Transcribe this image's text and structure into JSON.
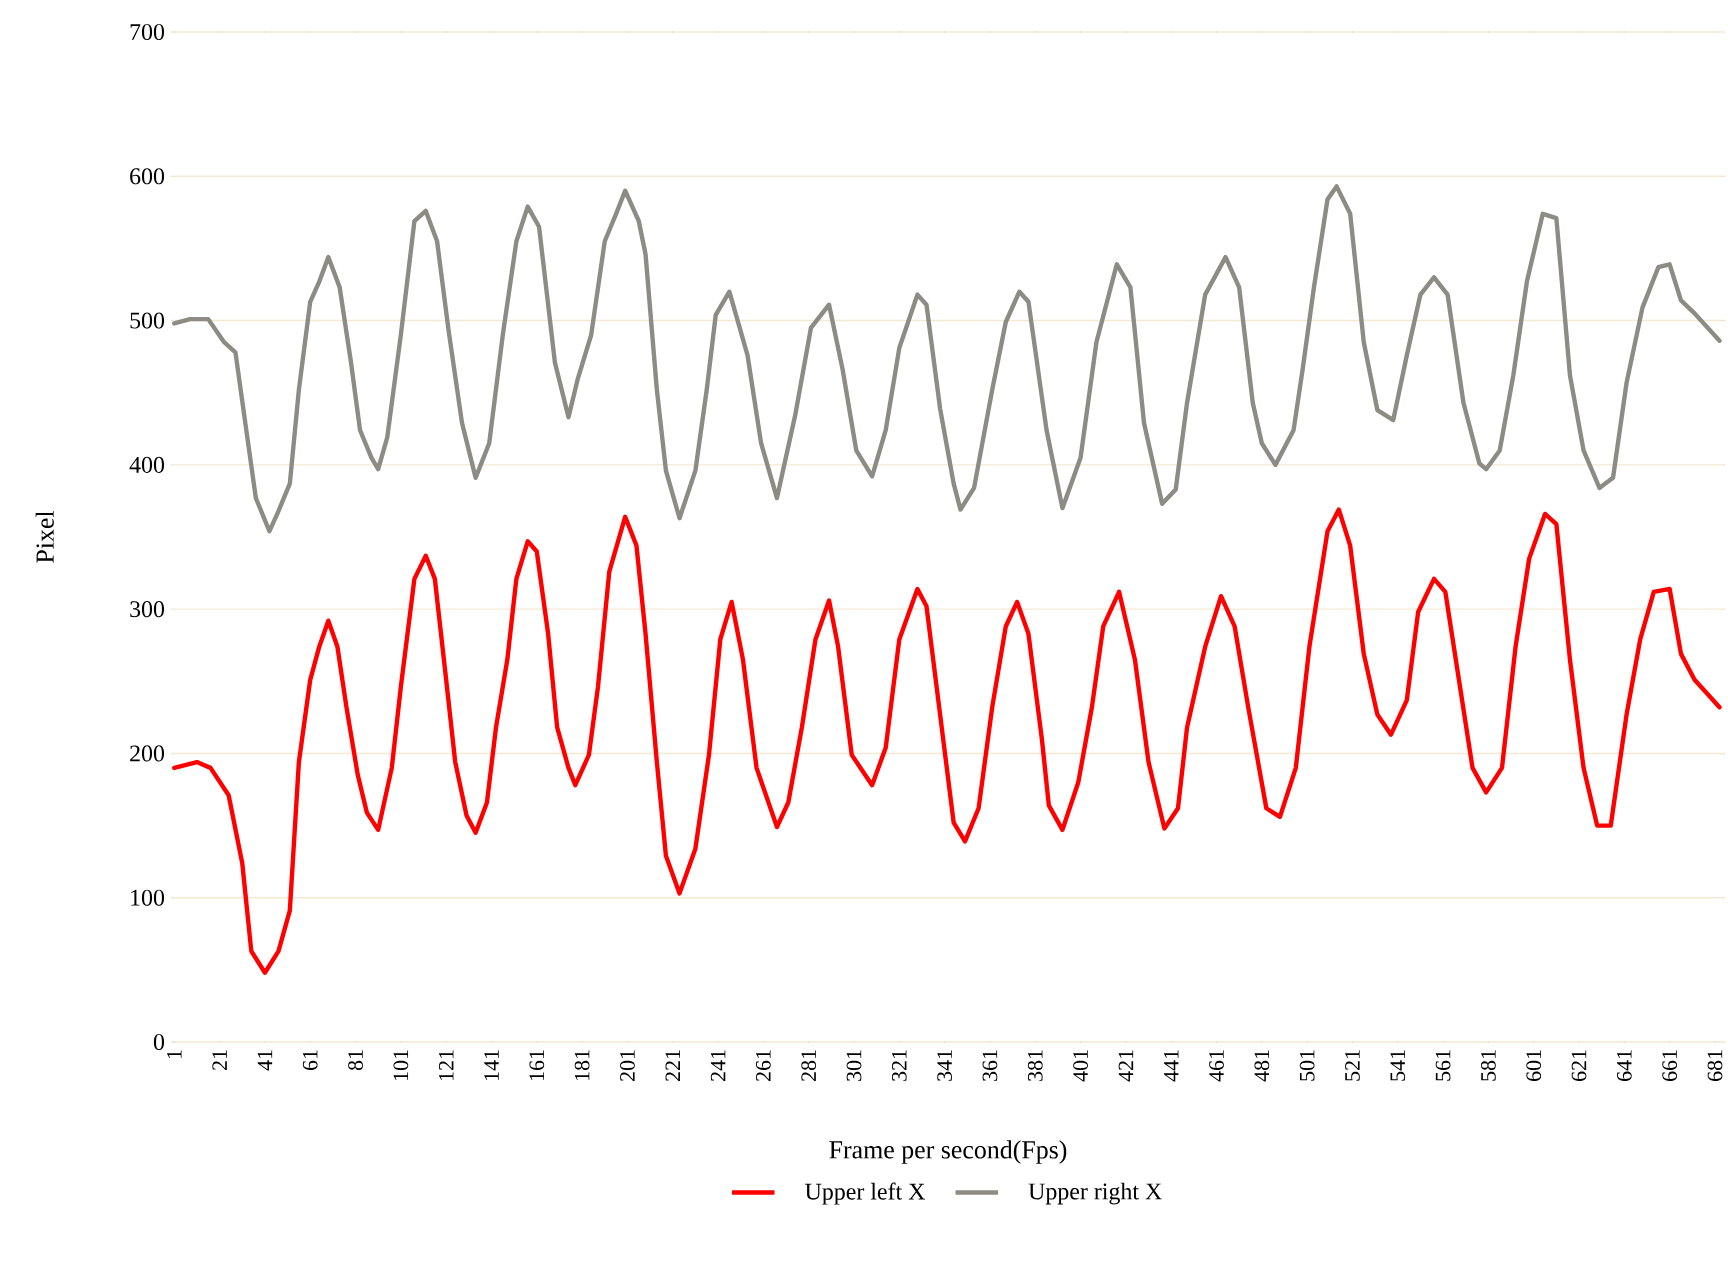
{
  "chart_data": {
    "type": "line",
    "xlabel": "Frame per second(Fps)",
    "ylabel": "Pixel",
    "xlim": [
      0,
      685
    ],
    "ylim": [
      0,
      700
    ],
    "xticks": [
      1,
      21,
      41,
      61,
      81,
      101,
      121,
      141,
      161,
      181,
      201,
      221,
      241,
      261,
      281,
      301,
      321,
      341,
      361,
      381,
      401,
      421,
      441,
      461,
      481,
      501,
      521,
      541,
      561,
      581,
      601,
      621,
      641,
      661,
      681
    ],
    "yticks": [
      0,
      100,
      200,
      300,
      400,
      500,
      600,
      700
    ],
    "grid": "y",
    "legend": "bottom",
    "marker": "none",
    "line_style": "solid",
    "series": [
      {
        "name": "Upper left X",
        "color": "#ff0000",
        "x": [
          1,
          11,
          17,
          25,
          31,
          35,
          41,
          47,
          52,
          56,
          61,
          65,
          69,
          73,
          77,
          82,
          86,
          91,
          97,
          101,
          107,
          112,
          116,
          121,
          125,
          130,
          134,
          139,
          143,
          148,
          152,
          157,
          161,
          166,
          170,
          175,
          178,
          184,
          188,
          193,
          200,
          205,
          209,
          214,
          218,
          224,
          231,
          237,
          242,
          247,
          252,
          258,
          267,
          272,
          278,
          284,
          290,
          294,
          300,
          309,
          315,
          321,
          329,
          333,
          339,
          345,
          350,
          356,
          362,
          368,
          373,
          378,
          384,
          387,
          393,
          400,
          406,
          411,
          418,
          425,
          431,
          438,
          444,
          448,
          456,
          463,
          469,
          475,
          483,
          489,
          496,
          502,
          510,
          515,
          520,
          526,
          532,
          538,
          545,
          550,
          557,
          562,
          568,
          574,
          580,
          587,
          593,
          599,
          606,
          611,
          617,
          623,
          629,
          635,
          642,
          648,
          654,
          661,
          666,
          672,
          683
        ],
        "values": [
          190,
          194,
          190,
          171,
          124,
          63,
          48,
          63,
          91,
          194,
          251,
          274,
          292,
          274,
          232,
          185,
          159,
          147,
          190,
          246,
          321,
          337,
          321,
          251,
          194,
          157,
          145,
          166,
          218,
          265,
          321,
          347,
          340,
          283,
          218,
          190,
          178,
          199,
          246,
          326,
          364,
          344,
          283,
          194,
          129,
          103,
          134,
          199,
          279,
          305,
          265,
          190,
          149,
          166,
          218,
          279,
          306,
          274,
          199,
          178,
          204,
          279,
          314,
          302,
          227,
          152,
          139,
          162,
          232,
          288,
          305,
          283,
          209,
          164,
          147,
          180,
          232,
          288,
          312,
          265,
          194,
          148,
          162,
          218,
          274,
          309,
          288,
          232,
          162,
          156,
          190,
          274,
          354,
          369,
          344,
          269,
          227,
          213,
          237,
          298,
          321,
          312,
          251,
          190,
          173,
          190,
          274,
          335,
          366,
          359,
          265,
          190,
          150,
          150,
          227,
          279,
          312,
          314,
          269,
          251,
          232
        ]
      },
      {
        "name": "Upper right X",
        "color": "#8c8c84",
        "x": [
          1,
          8,
          16,
          23,
          28,
          32,
          37,
          43,
          47,
          52,
          56,
          61,
          65,
          69,
          74,
          79,
          83,
          88,
          91,
          95,
          101,
          107,
          112,
          117,
          122,
          128,
          134,
          140,
          146,
          152,
          157,
          162,
          169,
          175,
          179,
          185,
          191,
          196,
          200,
          206,
          209,
          214,
          218,
          224,
          231,
          236,
          240,
          246,
          254,
          260,
          267,
          275,
          282,
          290,
          296,
          302,
          309,
          315,
          321,
          329,
          333,
          339,
          345,
          348,
          354,
          362,
          368,
          374,
          378,
          386,
          393,
          401,
          408,
          417,
          423,
          429,
          437,
          443,
          448,
          456,
          465,
          471,
          477,
          481,
          487,
          495,
          499,
          504,
          510,
          514,
          520,
          526,
          532,
          539,
          545,
          551,
          557,
          563,
          570,
          577,
          580,
          586,
          592,
          598,
          605,
          611,
          617,
          623,
          630,
          636,
          642,
          649,
          656,
          661,
          666,
          672,
          683
        ],
        "values": [
          498,
          501,
          501,
          485,
          478,
          433,
          377,
          354,
          368,
          387,
          452,
          513,
          527,
          544,
          523,
          471,
          424,
          405,
          397,
          419,
          490,
          569,
          576,
          555,
          494,
          429,
          391,
          415,
          490,
          555,
          579,
          565,
          471,
          433,
          459,
          490,
          555,
          574,
          590,
          569,
          546,
          452,
          396,
          363,
          396,
          452,
          504,
          520,
          476,
          415,
          377,
          434,
          495,
          511,
          466,
          410,
          392,
          424,
          481,
          518,
          511,
          439,
          387,
          369,
          384,
          452,
          499,
          520,
          513,
          424,
          370,
          405,
          485,
          539,
          523,
          429,
          373,
          383,
          443,
          518,
          544,
          523,
          443,
          415,
          400,
          424,
          466,
          523,
          584,
          593,
          574,
          485,
          438,
          431,
          476,
          518,
          530,
          518,
          443,
          401,
          397,
          410,
          462,
          527,
          574,
          571,
          462,
          410,
          384,
          391,
          457,
          509,
          537,
          539,
          514,
          505,
          486
        ]
      }
    ]
  }
}
